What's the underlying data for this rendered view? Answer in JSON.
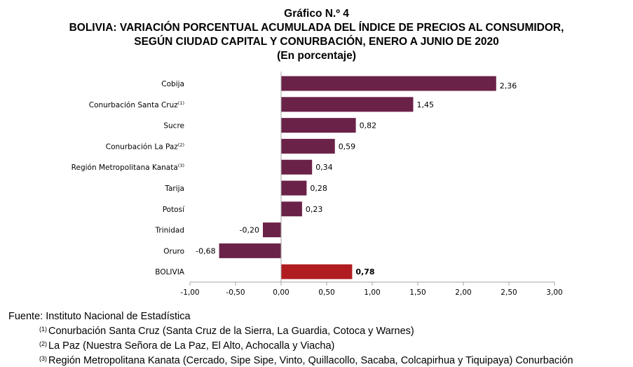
{
  "header": {
    "chart_number": "Gráfico N.º 4",
    "title_line1": "BOLIVIA: VARIACIÓN PORCENTUAL ACUMULADA DEL ÍNDICE DE PRECIOS AL CONSUMIDOR,",
    "title_line2": "SEGÚN CIUDAD CAPITAL Y CONURBACIÓN, ENERO A JUNIO DE 2020",
    "subtitle": "(En porcentaje)"
  },
  "colors": {
    "bar": "#6b2248",
    "highlight": "#b01c20",
    "axis": "#a6a6a6"
  },
  "chart_data": {
    "type": "bar",
    "orientation": "horizontal",
    "categories": [
      {
        "label": "Cobija",
        "sup": ""
      },
      {
        "label": "Conurbación Santa Cruz",
        "sup": "(1)"
      },
      {
        "label": "Sucre",
        "sup": ""
      },
      {
        "label": "Conurbación La Paz",
        "sup": "(2)"
      },
      {
        "label": "Región Metropolitana Kanata",
        "sup": "(3)"
      },
      {
        "label": "Tarija",
        "sup": ""
      },
      {
        "label": "Potosí",
        "sup": ""
      },
      {
        "label": "Trinidad",
        "sup": ""
      },
      {
        "label": "Oruro",
        "sup": ""
      },
      {
        "label": "BOLIVIA",
        "sup": ""
      }
    ],
    "values": [
      2.36,
      1.45,
      0.82,
      0.59,
      0.34,
      0.28,
      0.23,
      -0.2,
      -0.68,
      0.78
    ],
    "value_labels": [
      "2,36",
      "1,45",
      "0,82",
      "0,59",
      "0,34",
      "0,28",
      "0,23",
      "-0,20",
      "-0,68",
      "0,78"
    ],
    "highlight_category": "BOLIVIA",
    "xlim": [
      -1.0,
      3.0
    ],
    "xticks": [
      -1.0,
      -0.5,
      0.0,
      0.5,
      1.0,
      1.5,
      2.0,
      2.5,
      3.0
    ],
    "xtick_labels": [
      "-1,00",
      "-0,50",
      "0,00",
      "0,50",
      "1,00",
      "1,50",
      "2,00",
      "2,50",
      "3,00"
    ],
    "grid": false,
    "legend": "none"
  },
  "footer": {
    "source": "Fuente: Instituto Nacional de Estadística",
    "notes": [
      {
        "mark": "(1)",
        "text": "Conurbación Santa Cruz (Santa Cruz de la Sierra, La Guardia, Cotoca y Warnes)"
      },
      {
        "mark": "(2)",
        "text": "La Paz (Nuestra Señora de La Paz, El Alto, Achocalla y Viacha)"
      },
      {
        "mark": "(3)",
        "text": "Región Metropolitana Kanata (Cercado, Sipe Sipe, Vinto, Quillacollo, Sacaba, Colcapirhua y Tiquipaya) Conurbación"
      }
    ]
  }
}
